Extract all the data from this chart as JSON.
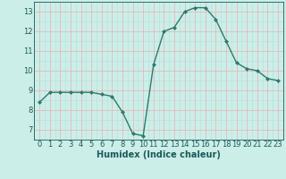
{
  "x": [
    0,
    1,
    2,
    3,
    4,
    5,
    6,
    7,
    8,
    9,
    10,
    11,
    12,
    13,
    14,
    15,
    16,
    17,
    18,
    19,
    20,
    21,
    22,
    23
  ],
  "y": [
    8.4,
    8.9,
    8.9,
    8.9,
    8.9,
    8.9,
    8.8,
    8.7,
    7.9,
    6.8,
    6.7,
    10.3,
    12.0,
    12.2,
    13.0,
    13.2,
    13.2,
    12.6,
    11.5,
    10.4,
    10.1,
    10.0,
    9.6,
    9.5
  ],
  "line_color": "#2d7a6e",
  "marker": "D",
  "marker_size": 2.0,
  "line_width": 1.0,
  "bg_color": "#cceee8",
  "grid_color_major": "#e8b0b0",
  "grid_color_minor": "#b8ddd8",
  "xlabel": "Humidex (Indice chaleur)",
  "xlabel_color": "#1a5a5a",
  "xlabel_fontsize": 7,
  "tick_color": "#1a5a5a",
  "tick_fontsize": 6,
  "ylim": [
    6.5,
    13.5
  ],
  "yticks": [
    7,
    8,
    9,
    10,
    11,
    12,
    13
  ],
  "xlim": [
    -0.5,
    23.5
  ],
  "xticks": [
    0,
    1,
    2,
    3,
    4,
    5,
    6,
    7,
    8,
    9,
    10,
    11,
    12,
    13,
    14,
    15,
    16,
    17,
    18,
    19,
    20,
    21,
    22,
    23
  ]
}
